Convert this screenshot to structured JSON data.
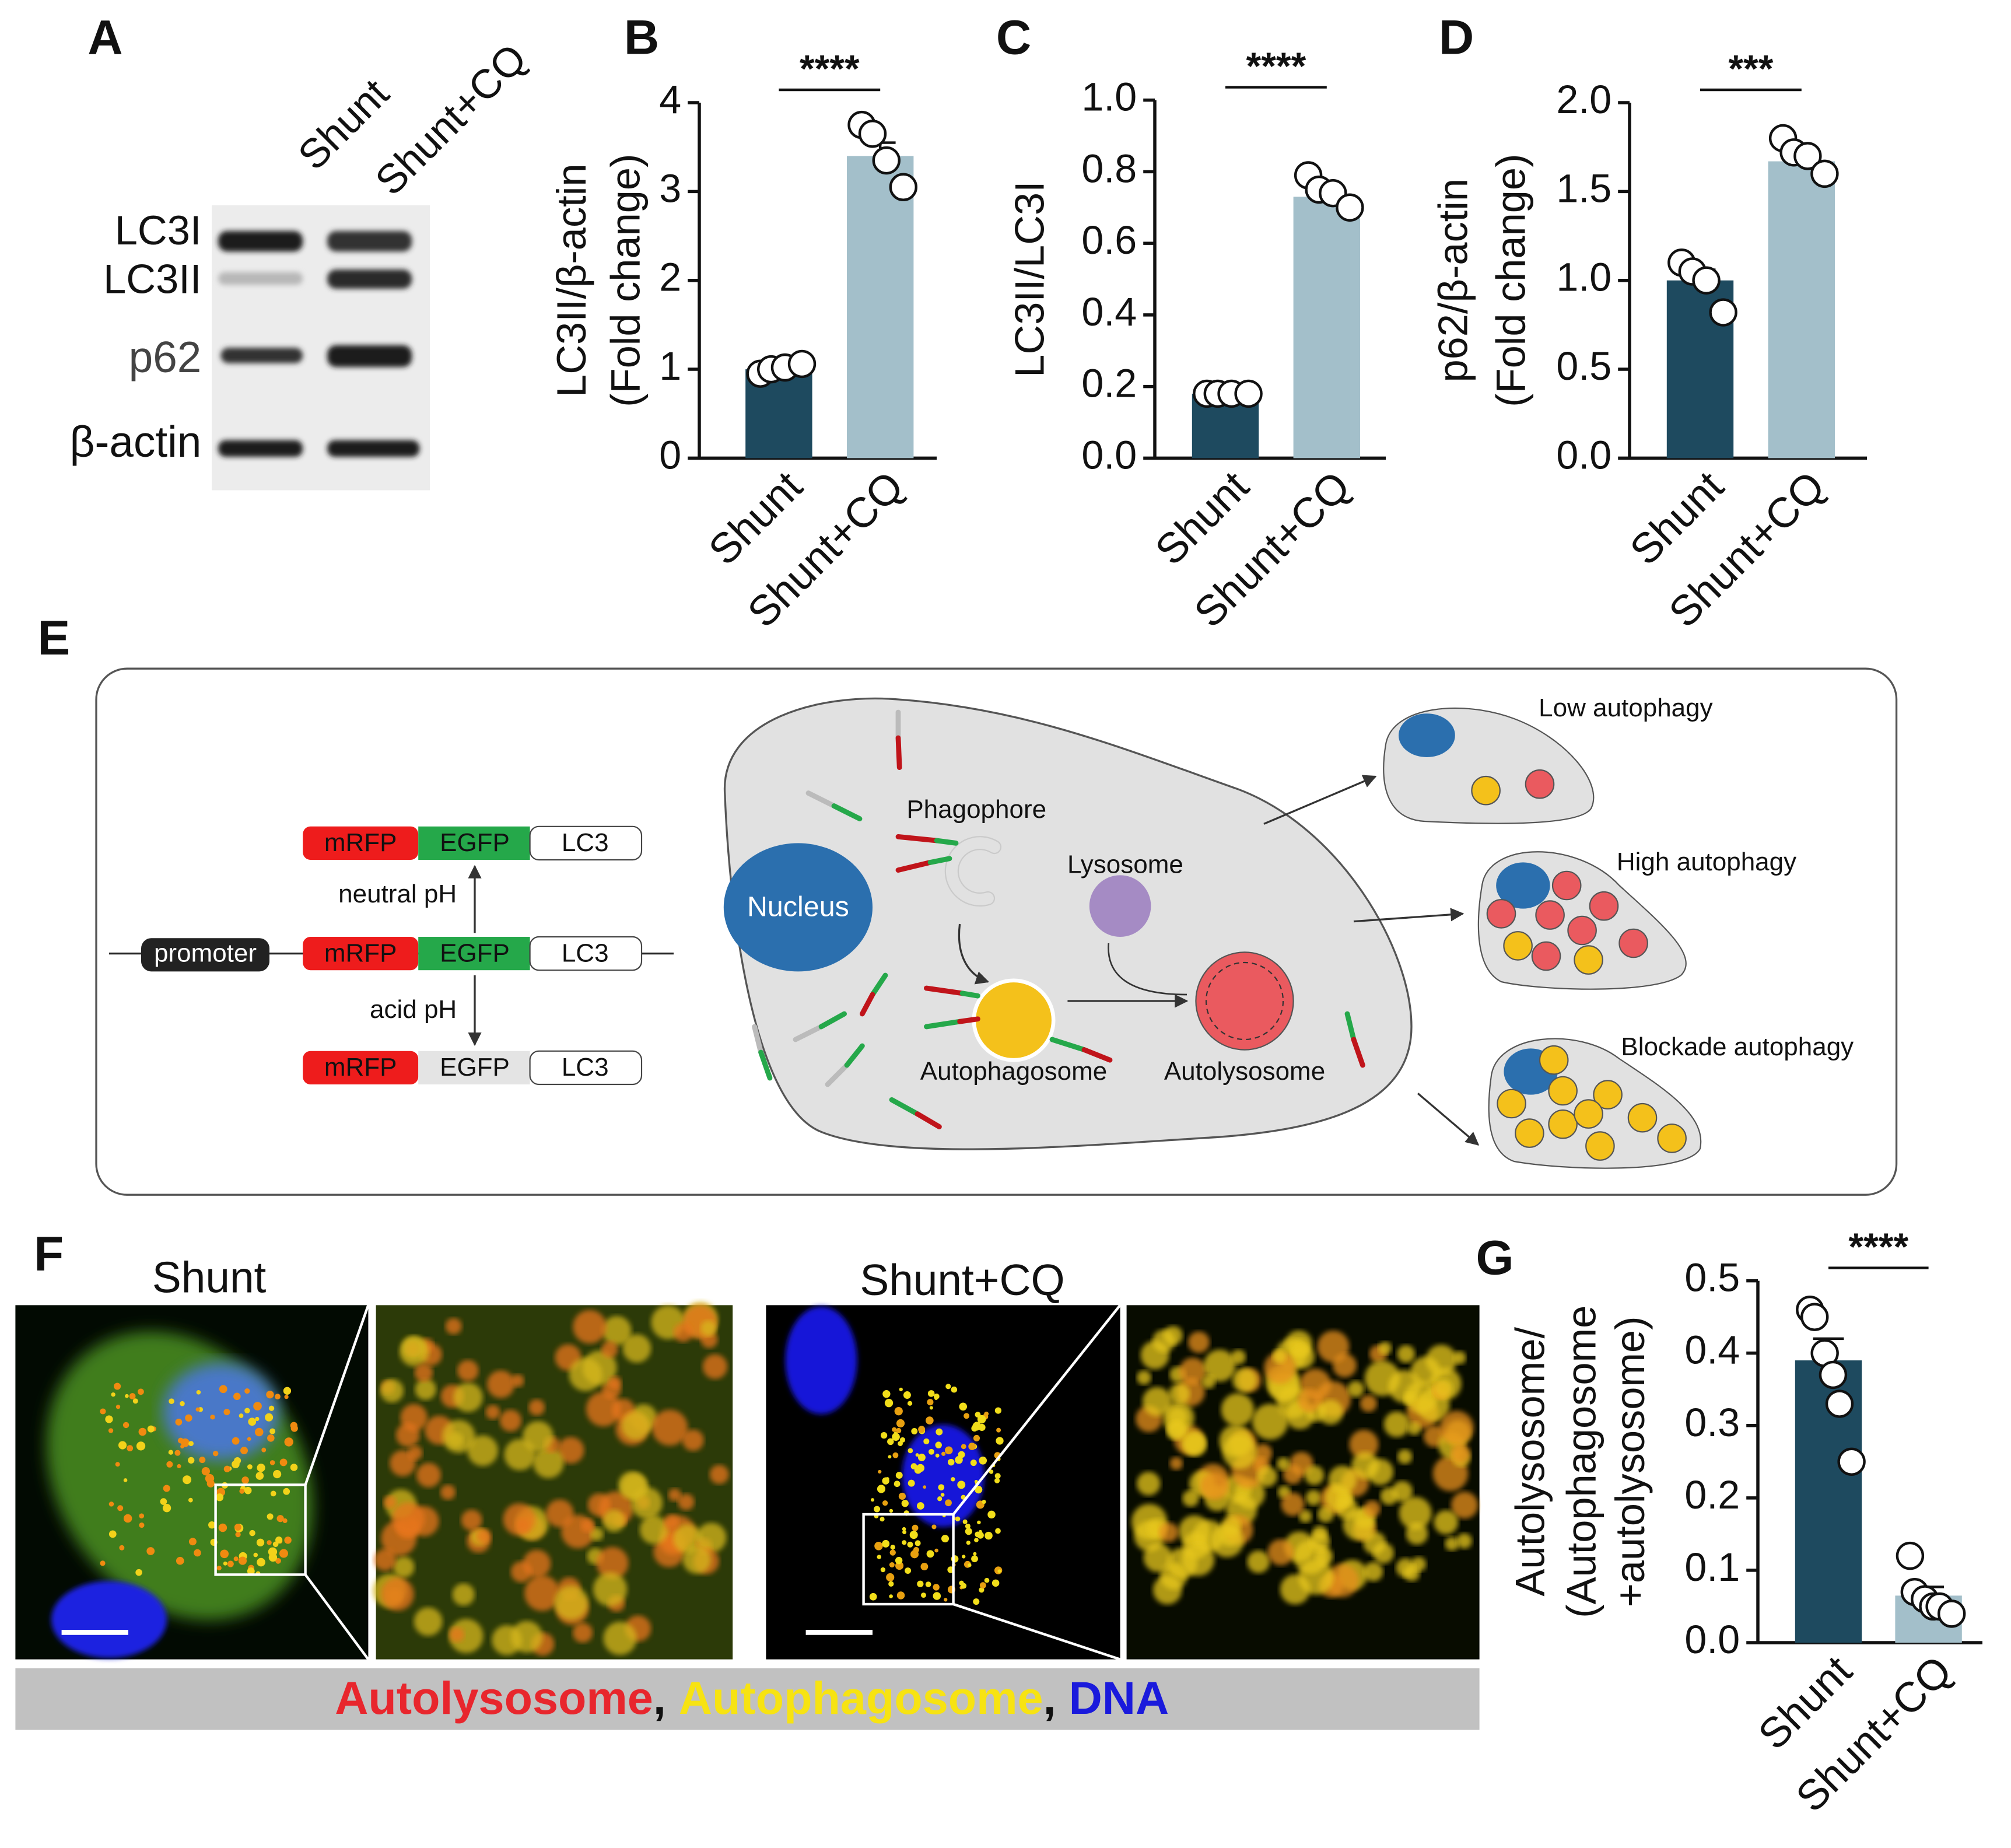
{
  "panel_labels": [
    "A",
    "E",
    "F"
  ],
  "blot": {
    "lanes": [
      "Shunt",
      "Shunt+CQ"
    ],
    "bands": [
      "LC3I",
      "LC3II",
      "p62",
      "β-actin"
    ]
  },
  "diagram": {
    "reporter": [
      "mRFP",
      "EGFP",
      "LC3"
    ],
    "promoter": "promoter",
    "neutral": "neutral pH",
    "acid": "acid pH",
    "cell": [
      "Phagophore",
      "Lysosome",
      "Nucleus",
      "Autophagosome",
      "Autolysosome"
    ],
    "outcomes": [
      "Low autophagy",
      "High autophagy",
      "Blockade autophagy"
    ]
  },
  "micrographs": {
    "titles": [
      "Shunt",
      "Shunt+CQ"
    ],
    "legend": [
      {
        "text": "Autolysosome",
        "color": "#e8262d"
      },
      {
        "text": "Autophagosome",
        "color": "#f7e312"
      },
      {
        "text": "DNA",
        "color": "#1a1adc"
      }
    ],
    "separator": ","
  },
  "chart_data": [
    {
      "type": "bar",
      "panel": "B",
      "ylabel": [
        "LC3II/β-actin",
        "(Fold change)"
      ],
      "categories": [
        "Shunt",
        "Shunt+CQ"
      ],
      "values": [
        1.0,
        3.4
      ],
      "errors": [
        0.05,
        0.15
      ],
      "points": [
        [
          0.95,
          1.0,
          1.02,
          1.06
        ],
        [
          3.75,
          3.65,
          3.35,
          3.05
        ]
      ],
      "colors": [
        "#1e4a5f",
        "#a3bfca"
      ],
      "significance": "****",
      "ylim": [
        0,
        4
      ],
      "yticks": [
        0,
        1,
        2,
        3,
        4
      ]
    },
    {
      "type": "bar",
      "panel": "C",
      "ylabel": [
        "LC3II/LC3I"
      ],
      "categories": [
        "Shunt",
        "Shunt+CQ"
      ],
      "values": [
        0.18,
        0.73
      ],
      "errors": [
        0.005,
        0.02
      ],
      "points": [
        [
          0.18,
          0.18,
          0.18,
          0.18
        ],
        [
          0.79,
          0.75,
          0.74,
          0.7
        ]
      ],
      "colors": [
        "#1e4a5f",
        "#a3bfca"
      ],
      "significance": "****",
      "ylim": [
        0,
        1.0
      ],
      "yticks": [
        {
          "value": 0,
          "label": "0.0"
        },
        0.2,
        0.4,
        0.6,
        0.8,
        {
          "value": 1.0,
          "label": "1.0"
        }
      ]
    },
    {
      "type": "bar",
      "panel": "D",
      "ylabel": [
        "p62/β-actin",
        "(Fold change)"
      ],
      "categories": [
        "Shunt",
        "Shunt+CQ"
      ],
      "values": [
        1.0,
        1.67
      ],
      "errors": [
        0.06,
        0.04
      ],
      "points": [
        [
          1.1,
          1.05,
          1.0,
          0.82
        ],
        [
          1.8,
          1.72,
          1.7,
          1.6
        ]
      ],
      "colors": [
        "#1e4a5f",
        "#a3bfca"
      ],
      "significance": "***",
      "ylim": [
        0,
        2.0
      ],
      "yticks": [
        {
          "value": 0,
          "label": "0.0"
        },
        0.5,
        {
          "value": 1.0,
          "label": "1.0"
        },
        1.5,
        {
          "value": 2.0,
          "label": "2.0"
        }
      ]
    },
    {
      "type": "bar",
      "panel": "G",
      "ylabel": [
        "Autolysosome/",
        "(Autophagosome",
        "+autolysosome)"
      ],
      "categories": [
        "Shunt",
        "Shunt+CQ"
      ],
      "values": [
        0.39,
        0.065
      ],
      "errors": [
        0.03,
        0.012
      ],
      "points": [
        [
          0.46,
          0.45,
          0.4,
          0.37,
          0.33,
          0.25
        ],
        [
          0.12,
          0.07,
          0.06,
          0.05,
          0.05,
          0.04
        ]
      ],
      "colors": [
        "#1e4a5f",
        "#a3bfca"
      ],
      "significance": "****",
      "ylim": [
        0,
        0.5
      ],
      "yticks": [
        {
          "value": 0,
          "label": "0.0"
        },
        0.1,
        0.2,
        0.3,
        0.4,
        0.5
      ]
    }
  ]
}
